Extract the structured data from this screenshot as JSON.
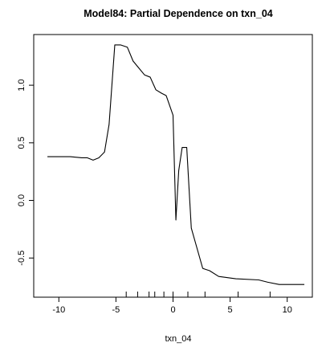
{
  "chart_data": {
    "type": "line",
    "title": "Model84: Partial Dependence on txn_04",
    "xlabel": "txn_04",
    "ylabel": "",
    "xlim": [
      -12.2,
      12.2
    ],
    "ylim": [
      -0.84,
      1.44
    ],
    "x_ticks": [
      -10,
      -5,
      0,
      5,
      10
    ],
    "y_ticks": [
      -0.5,
      0.0,
      0.5,
      1.0
    ],
    "x_tick_labels": [
      "-10",
      "-5",
      "0",
      "5",
      "10"
    ],
    "y_tick_labels": [
      "-0.5",
      "0.0",
      "0.5",
      "1.0"
    ],
    "grid": false,
    "legend": "none",
    "series": [
      {
        "x": [
          -11.0,
          -9.0,
          -8.0,
          -7.5,
          -7.0,
          -6.5,
          -6.0,
          -5.6,
          -5.1,
          -4.6,
          -4.0,
          -3.5,
          -3.0,
          -2.5,
          -2.0,
          -1.5,
          -1.0,
          -0.6,
          0.0,
          0.25,
          0.5,
          0.8,
          1.2,
          1.6,
          2.0,
          2.6,
          3.2,
          4.0,
          5.5,
          7.5,
          8.3,
          9.3,
          11.5
        ],
        "y": [
          0.38,
          0.38,
          0.37,
          0.37,
          0.35,
          0.37,
          0.42,
          0.66,
          1.35,
          1.35,
          1.33,
          1.21,
          1.15,
          1.09,
          1.07,
          0.96,
          0.93,
          0.91,
          0.74,
          -0.17,
          0.26,
          0.46,
          0.46,
          -0.24,
          -0.38,
          -0.59,
          -0.61,
          -0.66,
          -0.68,
          -0.69,
          -0.71,
          -0.73,
          -0.73
        ]
      }
    ],
    "rug": [
      -4.1,
      -3.1,
      -2.1,
      -1.6,
      -0.8,
      0.0,
      1.3,
      2.8,
      5.7,
      8.5
    ]
  }
}
